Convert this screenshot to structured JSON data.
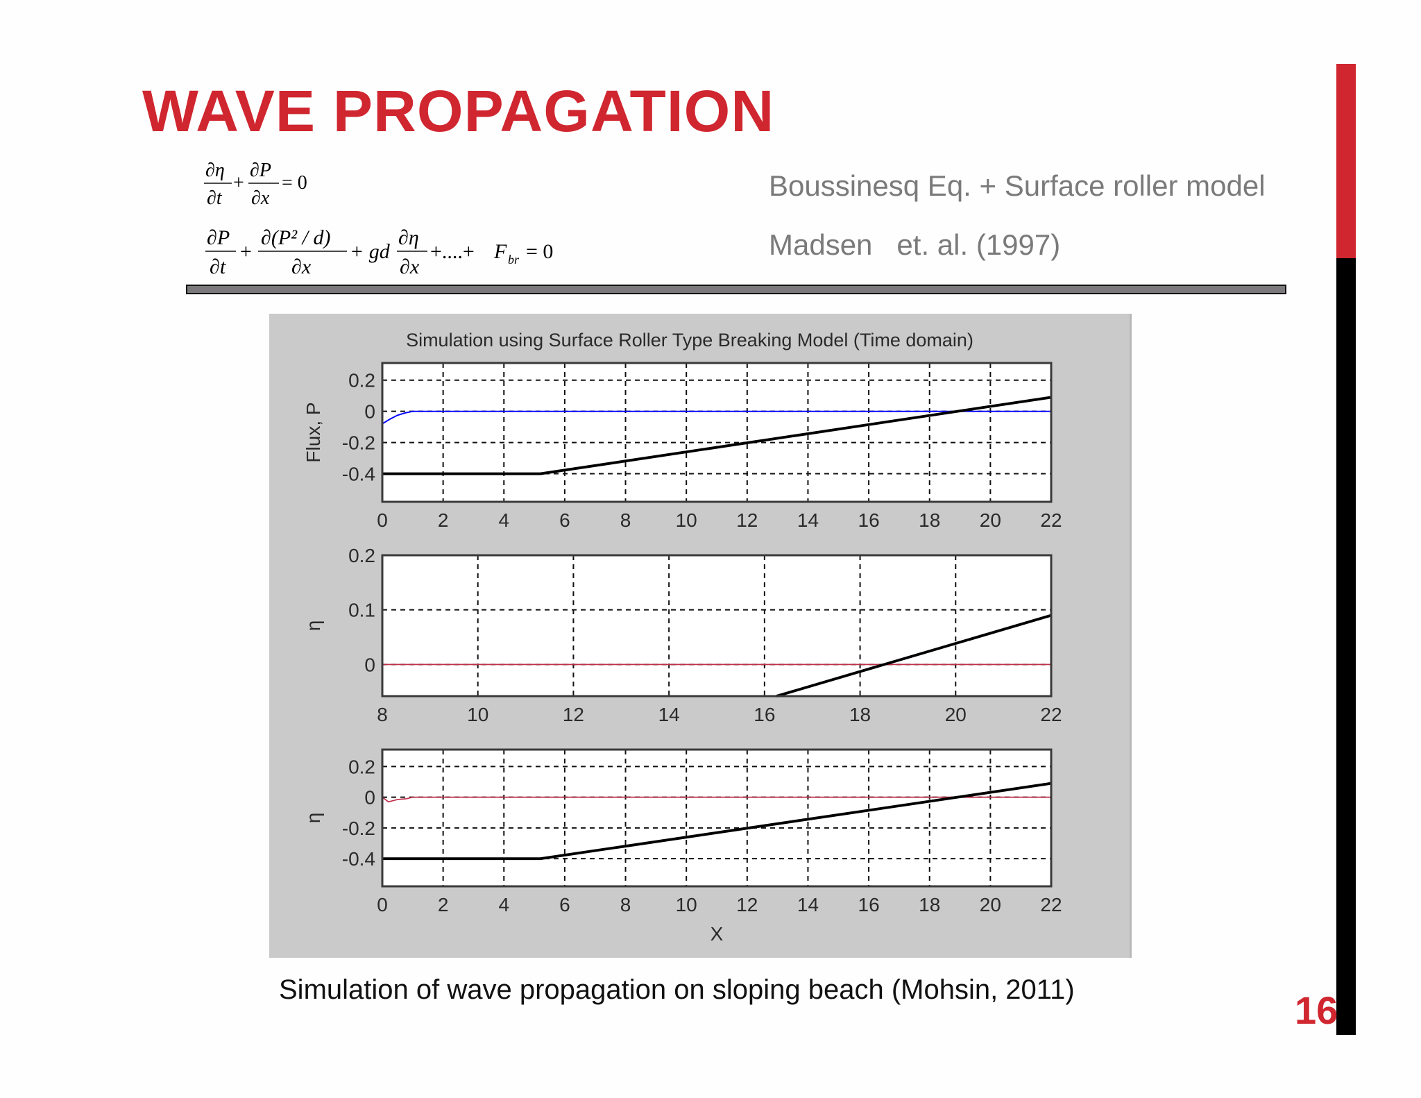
{
  "slide": {
    "title": "WAVE PROPAGATION",
    "subtitle_lines": [
      "Boussinesq Eq. + Surface roller model",
      "Madsen   et. al. (1997)"
    ],
    "page_number": "16",
    "caption": "Simulation of wave propagation on sloping beach (Mohsin, 2011)",
    "colors": {
      "title_red": "#d0262f",
      "subtitle_gray": "#7a7a7a",
      "accent_red": "#d0262f",
      "accent_black": "#000000",
      "figure_bg": "#cbcacb"
    }
  },
  "equations": {
    "continuity": "∂η/∂t + ∂P/∂x = 0",
    "momentum": "∂P/∂t + ∂(P²/d)/∂x + gd ∂η/∂x + .... + F_br = 0",
    "eq1": {
      "t1_num": "∂η",
      "t1_den": "∂t",
      "plus": "+",
      "t2_num": "∂P",
      "t2_den": "∂x",
      "rhs": "= 0"
    },
    "eq2": {
      "t1_num": "∂P",
      "t1_den": "∂t",
      "t2_num": "∂(P² / d)",
      "t2_den": "∂x",
      "gd": "+ gd",
      "t3_num": "∂η",
      "t3_den": "∂x",
      "dots": "+....+",
      "F": "F",
      "F_sub": "br",
      "rhs": "= 0"
    }
  },
  "chart_data": [
    {
      "type": "line",
      "title": "Simulation using Surface Roller Type Breaking Model (Time domain)",
      "xlabel": "",
      "ylabel": "Flux, P",
      "xlim": [
        0,
        22
      ],
      "ylim": [
        -0.58,
        0.31
      ],
      "xticks": [
        0,
        2,
        4,
        6,
        8,
        10,
        12,
        14,
        16,
        18,
        20,
        22
      ],
      "yticks": [
        0.2,
        0,
        -0.2,
        -0.4
      ],
      "grid": true,
      "series": [
        {
          "name": "flux",
          "color": "#0000ff",
          "width": 1.5,
          "x": [
            0,
            0.25,
            0.5,
            0.75,
            1.0,
            22
          ],
          "y": [
            -0.08,
            -0.05,
            -0.025,
            -0.01,
            0,
            0
          ]
        },
        {
          "name": "bottom",
          "color": "#000000",
          "width": 3,
          "x": [
            0,
            5,
            5.2,
            22
          ],
          "y": [
            -0.4,
            -0.4,
            -0.4,
            0.09
          ]
        }
      ]
    },
    {
      "type": "line",
      "title": "",
      "xlabel": "",
      "ylabel": "η",
      "xlim": [
        8,
        22
      ],
      "ylim": [
        -0.058,
        0.2
      ],
      "xticks": [
        8,
        10,
        12,
        14,
        16,
        18,
        20,
        22
      ],
      "yticks": [
        0.2,
        0.1,
        0
      ],
      "grid": true,
      "series": [
        {
          "name": "eta",
          "color": "#c0304a",
          "width": 1.3,
          "x": [
            8,
            22
          ],
          "y": [
            0,
            0
          ]
        },
        {
          "name": "bottom",
          "color": "#000000",
          "width": 3,
          "x": [
            16.25,
            22
          ],
          "y": [
            -0.058,
            0.09
          ]
        }
      ]
    },
    {
      "type": "line",
      "title": "",
      "xlabel": "X",
      "ylabel": "η",
      "xlim": [
        0,
        22
      ],
      "ylim": [
        -0.58,
        0.31
      ],
      "xticks": [
        0,
        2,
        4,
        6,
        8,
        10,
        12,
        14,
        16,
        18,
        20,
        22
      ],
      "yticks": [
        0.2,
        0,
        -0.2,
        -0.4
      ],
      "grid": true,
      "series": [
        {
          "name": "eta",
          "color": "#c0304a",
          "width": 1.3,
          "x": [
            0,
            0.2,
            0.5,
            0.8,
            1.0,
            22
          ],
          "y": [
            0,
            -0.03,
            -0.015,
            -0.01,
            0,
            0
          ]
        },
        {
          "name": "bottom",
          "color": "#000000",
          "width": 3,
          "x": [
            0,
            5,
            5.2,
            22
          ],
          "y": [
            -0.4,
            -0.4,
            -0.4,
            0.09
          ]
        }
      ]
    }
  ]
}
